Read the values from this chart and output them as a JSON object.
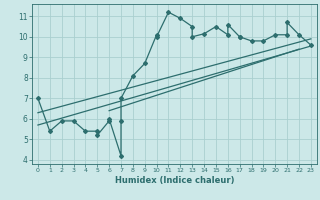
{
  "title": "",
  "xlabel": "Humidex (Indice chaleur)",
  "ylabel": "",
  "bg_color": "#cce8e8",
  "line_color": "#2d6e6e",
  "grid_color": "#aacfcf",
  "xlim": [
    -0.5,
    23.5
  ],
  "ylim": [
    3.8,
    11.6
  ],
  "xticks": [
    0,
    1,
    2,
    3,
    4,
    5,
    6,
    7,
    8,
    9,
    10,
    11,
    12,
    13,
    14,
    15,
    16,
    17,
    18,
    19,
    20,
    21,
    22,
    23
  ],
  "yticks": [
    4,
    5,
    6,
    7,
    8,
    9,
    10,
    11
  ],
  "data_x": [
    0,
    1,
    2,
    3,
    4,
    5,
    5,
    6,
    6,
    7,
    7,
    7,
    8,
    9,
    10,
    10,
    11,
    12,
    13,
    13,
    14,
    15,
    16,
    16,
    17,
    17,
    18,
    19,
    20,
    21,
    21,
    22,
    23
  ],
  "data_y": [
    7,
    5.4,
    5.9,
    5.9,
    5.4,
    5.4,
    5.2,
    5.9,
    6.0,
    4.2,
    5.9,
    7.0,
    8.1,
    8.7,
    10.1,
    10.0,
    11.2,
    10.9,
    10.5,
    10.0,
    10.15,
    10.5,
    10.1,
    10.6,
    10.0,
    10.0,
    9.8,
    9.8,
    10.1,
    10.1,
    10.7,
    10.1,
    9.6
  ],
  "reg_line1_x": [
    0,
    23
  ],
  "reg_line1_y": [
    5.7,
    9.55
  ],
  "reg_line2_x": [
    0,
    23
  ],
  "reg_line2_y": [
    6.3,
    9.9
  ],
  "reg_line3_x": [
    6,
    22
  ],
  "reg_line3_y": [
    6.4,
    9.4
  ]
}
